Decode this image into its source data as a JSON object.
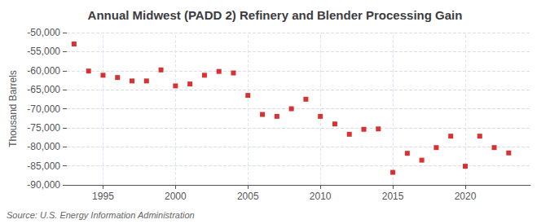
{
  "chart_data": {
    "type": "scatter",
    "title": "Annual Midwest (PADD 2) Refinery and Blender Processing Gain",
    "ylabel": "Thousand Barrels",
    "annotation": "Source: U.S. Energy Information Administration",
    "x": [
      1993,
      1994,
      1995,
      1996,
      1997,
      1998,
      1999,
      2000,
      2001,
      2002,
      2003,
      2004,
      2005,
      2006,
      2007,
      2008,
      2009,
      2010,
      2011,
      2012,
      2013,
      2014,
      2015,
      2016,
      2017,
      2018,
      2019,
      2020,
      2021,
      2022,
      2023
    ],
    "values": [
      -53000,
      -60100,
      -61200,
      -61800,
      -62700,
      -62700,
      -59800,
      -64000,
      -63500,
      -61200,
      -60200,
      -60600,
      -66500,
      -71500,
      -72000,
      -70000,
      -67500,
      -72000,
      -74000,
      -76700,
      -75400,
      -75300,
      -86700,
      -81700,
      -83500,
      -80200,
      -77200,
      -85100,
      -77200,
      -80200,
      -81600
    ],
    "color": "#cc0000",
    "marker": "square",
    "xlim": [
      1992.5,
      2024.5
    ],
    "xticks": [
      1995,
      2000,
      2005,
      2010,
      2015,
      2020
    ],
    "ylim": [
      -90000,
      -50000
    ],
    "yticks": [
      {
        "value": -90000,
        "label": "-90,000"
      },
      {
        "value": -85000,
        "label": "-85,000"
      },
      {
        "value": -80000,
        "label": "-80,000"
      },
      {
        "value": -75000,
        "label": "-75,000"
      },
      {
        "value": -70000,
        "label": "-70,000"
      },
      {
        "value": -65000,
        "label": "-65,000"
      },
      {
        "value": -60000,
        "label": "-60,000"
      },
      {
        "value": -55000,
        "label": "-55,000"
      },
      {
        "value": -50000,
        "label": "-50,000"
      }
    ],
    "grid": true
  }
}
